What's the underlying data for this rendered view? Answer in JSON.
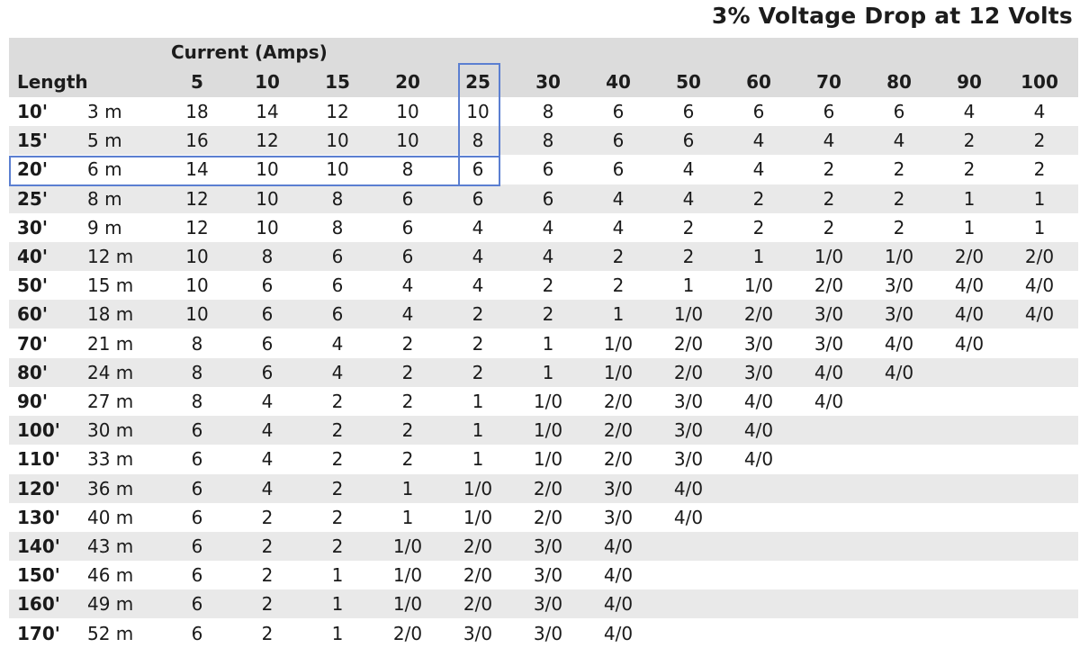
{
  "title": "3% Voltage Drop at 12 Volts",
  "header": {
    "current_label": "Current (Amps)",
    "length_label": "Length",
    "currents": [
      "5",
      "10",
      "15",
      "20",
      "25",
      "30",
      "40",
      "50",
      "60",
      "70",
      "80",
      "90",
      "100"
    ]
  },
  "rows": [
    {
      "ft": "10'",
      "m": "3 m",
      "v": [
        "18",
        "14",
        "12",
        "10",
        "10",
        "8",
        "6",
        "6",
        "6",
        "6",
        "6",
        "4",
        "4"
      ]
    },
    {
      "ft": "15'",
      "m": "5 m",
      "v": [
        "16",
        "12",
        "10",
        "10",
        "8",
        "8",
        "6",
        "6",
        "4",
        "4",
        "4",
        "2",
        "2"
      ]
    },
    {
      "ft": "20'",
      "m": "6 m",
      "v": [
        "14",
        "10",
        "10",
        "8",
        "6",
        "6",
        "6",
        "4",
        "4",
        "2",
        "2",
        "2",
        "2"
      ]
    },
    {
      "ft": "25'",
      "m": "8 m",
      "v": [
        "12",
        "10",
        "8",
        "6",
        "6",
        "6",
        "4",
        "4",
        "2",
        "2",
        "2",
        "1",
        "1"
      ]
    },
    {
      "ft": "30'",
      "m": "9 m",
      "v": [
        "12",
        "10",
        "8",
        "6",
        "4",
        "4",
        "4",
        "2",
        "2",
        "2",
        "2",
        "1",
        "1"
      ]
    },
    {
      "ft": "40'",
      "m": "12 m",
      "v": [
        "10",
        "8",
        "6",
        "6",
        "4",
        "4",
        "2",
        "2",
        "1",
        "1/0",
        "1/0",
        "2/0",
        "2/0"
      ]
    },
    {
      "ft": "50'",
      "m": "15 m",
      "v": [
        "10",
        "6",
        "6",
        "4",
        "4",
        "2",
        "2",
        "1",
        "1/0",
        "2/0",
        "3/0",
        "4/0",
        "4/0"
      ]
    },
    {
      "ft": "60'",
      "m": "18 m",
      "v": [
        "10",
        "6",
        "6",
        "4",
        "2",
        "2",
        "1",
        "1/0",
        "2/0",
        "3/0",
        "3/0",
        "4/0",
        "4/0"
      ]
    },
    {
      "ft": "70'",
      "m": "21 m",
      "v": [
        "8",
        "6",
        "4",
        "2",
        "2",
        "1",
        "1/0",
        "2/0",
        "3/0",
        "3/0",
        "4/0",
        "4/0",
        ""
      ]
    },
    {
      "ft": "80'",
      "m": "24 m",
      "v": [
        "8",
        "6",
        "4",
        "2",
        "2",
        "1",
        "1/0",
        "2/0",
        "3/0",
        "4/0",
        "4/0",
        "",
        ""
      ]
    },
    {
      "ft": "90'",
      "m": "27 m",
      "v": [
        "8",
        "4",
        "2",
        "2",
        "1",
        "1/0",
        "2/0",
        "3/0",
        "4/0",
        "4/0",
        "",
        "",
        ""
      ]
    },
    {
      "ft": "100'",
      "m": "30 m",
      "v": [
        "6",
        "4",
        "2",
        "2",
        "1",
        "1/0",
        "2/0",
        "3/0",
        "4/0",
        "",
        "",
        "",
        ""
      ]
    },
    {
      "ft": "110'",
      "m": "33 m",
      "v": [
        "6",
        "4",
        "2",
        "2",
        "1",
        "1/0",
        "2/0",
        "3/0",
        "4/0",
        "",
        "",
        "",
        ""
      ]
    },
    {
      "ft": "120'",
      "m": "36 m",
      "v": [
        "6",
        "4",
        "2",
        "1",
        "1/0",
        "2/0",
        "3/0",
        "4/0",
        "",
        "",
        "",
        "",
        ""
      ]
    },
    {
      "ft": "130'",
      "m": "40 m",
      "v": [
        "6",
        "2",
        "2",
        "1",
        "1/0",
        "2/0",
        "3/0",
        "4/0",
        "",
        "",
        "",
        "",
        ""
      ]
    },
    {
      "ft": "140'",
      "m": "43 m",
      "v": [
        "6",
        "2",
        "2",
        "1/0",
        "2/0",
        "3/0",
        "4/0",
        "",
        "",
        "",
        "",
        "",
        ""
      ]
    },
    {
      "ft": "150'",
      "m": "46 m",
      "v": [
        "6",
        "2",
        "1",
        "1/0",
        "2/0",
        "3/0",
        "4/0",
        "",
        "",
        "",
        "",
        "",
        ""
      ]
    },
    {
      "ft": "160'",
      "m": "49 m",
      "v": [
        "6",
        "2",
        "1",
        "1/0",
        "2/0",
        "3/0",
        "4/0",
        "",
        "",
        "",
        "",
        "",
        ""
      ]
    },
    {
      "ft": "170'",
      "m": "52 m",
      "v": [
        "6",
        "2",
        "1",
        "2/0",
        "3/0",
        "3/0",
        "4/0",
        "",
        "",
        "",
        "",
        "",
        ""
      ]
    }
  ],
  "highlight_color": "#5b7fd1"
}
